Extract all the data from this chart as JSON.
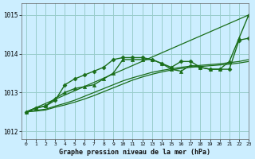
{
  "title": "Graphe pression niveau de la mer (hPa)",
  "bg_color": "#cceeff",
  "grid_color": "#99cccc",
  "line_color": "#1a6e1a",
  "xlim": [
    -0.5,
    23
  ],
  "ylim": [
    1011.8,
    1015.3
  ],
  "yticks": [
    1012,
    1013,
    1014,
    1015
  ],
  "xticks": [
    0,
    1,
    2,
    3,
    4,
    5,
    6,
    7,
    8,
    9,
    10,
    11,
    12,
    13,
    14,
    15,
    16,
    17,
    18,
    19,
    20,
    21,
    22,
    23
  ],
  "series": [
    {
      "x": [
        0,
        23
      ],
      "y": [
        1012.5,
        1015.0
      ],
      "marker": null,
      "lw": 0.9,
      "ms": 0
    },
    {
      "x": [
        0,
        1,
        2,
        3,
        4,
        5,
        6,
        7,
        8,
        9,
        10,
        11,
        12,
        13,
        14,
        15,
        16,
        17,
        18,
        19,
        20,
        21,
        22,
        23
      ],
      "y": [
        1012.5,
        1012.6,
        1012.65,
        1012.8,
        1013.2,
        1013.35,
        1013.45,
        1013.55,
        1013.65,
        1013.85,
        1013.9,
        1013.9,
        1013.9,
        1013.85,
        1013.75,
        1013.65,
        1013.8,
        1013.8,
        1013.65,
        1013.6,
        1013.6,
        1013.6,
        1014.35,
        1014.4
      ],
      "marker": "D",
      "lw": 1.0,
      "ms": 2.5
    },
    {
      "x": [
        0,
        1,
        2,
        3,
        4,
        5,
        6,
        7,
        8,
        9,
        10,
        11,
        12,
        13,
        14,
        15,
        16,
        17,
        18,
        19,
        20,
        21,
        22,
        23
      ],
      "y": [
        1012.5,
        1012.6,
        1012.65,
        1012.85,
        1013.0,
        1013.1,
        1013.15,
        1013.2,
        1013.35,
        1013.5,
        1013.85,
        1013.85,
        1013.85,
        1013.85,
        1013.75,
        1013.6,
        1013.55,
        1013.7,
        1013.65,
        1013.6,
        1013.6,
        1013.8,
        1014.4,
        1015.0
      ],
      "marker": "^",
      "lw": 1.0,
      "ms": 3.0
    },
    {
      "x": [
        0,
        1,
        2,
        3,
        4,
        5,
        6,
        7,
        8,
        9,
        10,
        11,
        12,
        13,
        14,
        15,
        16,
        17,
        18,
        19,
        20,
        21,
        22,
        23
      ],
      "y": [
        1012.5,
        1012.52,
        1012.55,
        1012.62,
        1012.68,
        1012.75,
        1012.83,
        1012.92,
        1013.02,
        1013.12,
        1013.22,
        1013.32,
        1013.4,
        1013.47,
        1013.53,
        1013.58,
        1013.62,
        1013.65,
        1013.67,
        1013.69,
        1013.71,
        1013.73,
        1013.76,
        1013.8
      ],
      "marker": null,
      "lw": 0.9,
      "ms": 0
    },
    {
      "x": [
        0,
        1,
        2,
        3,
        4,
        5,
        6,
        7,
        8,
        9,
        10,
        11,
        12,
        13,
        14,
        15,
        16,
        17,
        18,
        19,
        20,
        21,
        22,
        23
      ],
      "y": [
        1012.5,
        1012.54,
        1012.57,
        1012.65,
        1012.72,
        1012.8,
        1012.9,
        1013.0,
        1013.1,
        1013.2,
        1013.3,
        1013.38,
        1013.45,
        1013.52,
        1013.57,
        1013.61,
        1013.65,
        1013.68,
        1013.7,
        1013.72,
        1013.74,
        1013.77,
        1013.8,
        1013.85
      ],
      "marker": null,
      "lw": 0.9,
      "ms": 0
    }
  ]
}
